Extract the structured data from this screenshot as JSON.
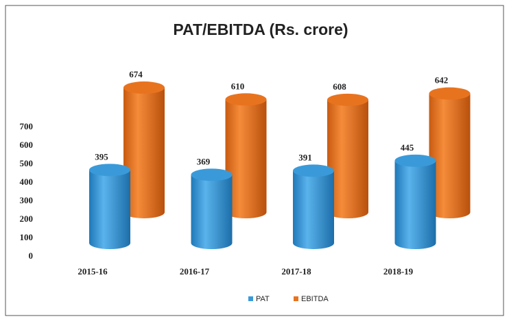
{
  "chart_data": {
    "type": "bar",
    "title": "PAT/EBITDA (Rs. crore)",
    "categories": [
      "2015-16",
      "2016-17",
      "2017-18",
      "2018-19"
    ],
    "series": [
      {
        "name": "PAT",
        "color": "#3a9ad9",
        "values": [
          395,
          369,
          391,
          445
        ]
      },
      {
        "name": "EBITDA",
        "color": "#e8731f",
        "values": [
          674,
          610,
          608,
          642
        ]
      }
    ],
    "ylim": [
      0,
      700
    ],
    "yticks": [
      0,
      100,
      200,
      300,
      400,
      500,
      600,
      700
    ],
    "grid": false,
    "legend": "bottom"
  }
}
